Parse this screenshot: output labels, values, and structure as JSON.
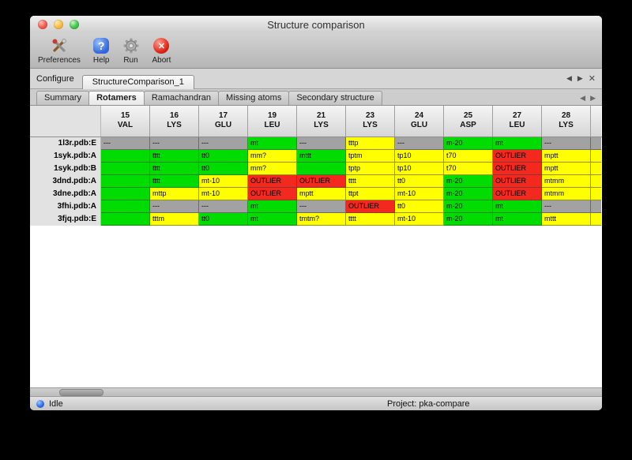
{
  "window": {
    "title": "Structure comparison"
  },
  "icons": {
    "prev": "◀",
    "next": "▶",
    "close": "✕",
    "abort_x": "✕",
    "help_mark": "?"
  },
  "toolbar": {
    "preferences": "Preferences",
    "help": "Help",
    "run": "Run",
    "abort": "Abort"
  },
  "configure": {
    "label": "Configure",
    "session_tab": "StructureComparison_1"
  },
  "tabs": {
    "items": [
      {
        "label": "Summary",
        "active": false
      },
      {
        "label": "Rotamers",
        "active": true
      },
      {
        "label": "Ramachandran",
        "active": false
      },
      {
        "label": "Missing atoms",
        "active": false
      },
      {
        "label": "Secondary structure",
        "active": false
      }
    ]
  },
  "table": {
    "colors": {
      "green": "#00dc00",
      "yellow": "#ffff00",
      "gray": "#a2a2a2",
      "red": "#f3281e"
    },
    "columns": [
      {
        "num": "15",
        "res": "VAL"
      },
      {
        "num": "16",
        "res": "LYS"
      },
      {
        "num": "17",
        "res": "GLU"
      },
      {
        "num": "19",
        "res": "LEU"
      },
      {
        "num": "21",
        "res": "LYS"
      },
      {
        "num": "23",
        "res": "LYS"
      },
      {
        "num": "24",
        "res": "GLU"
      },
      {
        "num": "25",
        "res": "ASP"
      },
      {
        "num": "27",
        "res": "LEU"
      },
      {
        "num": "28",
        "res": "LYS"
      },
      {
        "num": "",
        "res": ""
      }
    ],
    "rows": [
      {
        "label": "1l3r.pdb:E",
        "cells": [
          {
            "t": "---",
            "c": "gray"
          },
          {
            "t": "---",
            "c": "gray"
          },
          {
            "t": "---",
            "c": "gray"
          },
          {
            "t": "mt",
            "c": "green"
          },
          {
            "t": "---",
            "c": "gray"
          },
          {
            "t": "tttp",
            "c": "yellow"
          },
          {
            "t": "---",
            "c": "gray"
          },
          {
            "t": "m-20",
            "c": "green"
          },
          {
            "t": "mt",
            "c": "green"
          },
          {
            "t": "---",
            "c": "gray"
          },
          {
            "t": "",
            "c": "gray"
          }
        ]
      },
      {
        "label": "1syk.pdb:A",
        "cells": [
          {
            "t": "",
            "c": "green"
          },
          {
            "t": "tttt",
            "c": "green"
          },
          {
            "t": "tt0",
            "c": "green"
          },
          {
            "t": "mm?",
            "c": "yellow"
          },
          {
            "t": "mttt",
            "c": "green"
          },
          {
            "t": "tptm",
            "c": "yellow"
          },
          {
            "t": "tp10",
            "c": "yellow"
          },
          {
            "t": "t70",
            "c": "yellow"
          },
          {
            "t": "OUTLIER",
            "c": "red"
          },
          {
            "t": "mptt",
            "c": "yellow"
          },
          {
            "t": "",
            "c": "yellow"
          }
        ]
      },
      {
        "label": "1syk.pdb:B",
        "cells": [
          {
            "t": "",
            "c": "green"
          },
          {
            "t": "tttt",
            "c": "green"
          },
          {
            "t": "tt0",
            "c": "green"
          },
          {
            "t": "mm?",
            "c": "yellow"
          },
          {
            "t": "",
            "c": "green"
          },
          {
            "t": "tptp",
            "c": "yellow"
          },
          {
            "t": "tp10",
            "c": "yellow"
          },
          {
            "t": "t70",
            "c": "yellow"
          },
          {
            "t": "OUTLIER",
            "c": "red"
          },
          {
            "t": "mptt",
            "c": "yellow"
          },
          {
            "t": "",
            "c": "yellow"
          }
        ]
      },
      {
        "label": "3dnd.pdb:A",
        "cells": [
          {
            "t": "",
            "c": "green"
          },
          {
            "t": "tttt",
            "c": "green"
          },
          {
            "t": "mt-10",
            "c": "yellow"
          },
          {
            "t": "OUTLIER",
            "c": "red"
          },
          {
            "t": "OUTLIER",
            "c": "red"
          },
          {
            "t": "tttt",
            "c": "yellow"
          },
          {
            "t": "tt0",
            "c": "yellow"
          },
          {
            "t": "m-20",
            "c": "green"
          },
          {
            "t": "OUTLIER",
            "c": "red"
          },
          {
            "t": "mtmm",
            "c": "yellow"
          },
          {
            "t": "",
            "c": "yellow"
          }
        ]
      },
      {
        "label": "3dne.pdb:A",
        "cells": [
          {
            "t": "",
            "c": "green"
          },
          {
            "t": "mttp",
            "c": "yellow"
          },
          {
            "t": "mt-10",
            "c": "yellow"
          },
          {
            "t": "OUTLIER",
            "c": "red"
          },
          {
            "t": "mptt",
            "c": "yellow"
          },
          {
            "t": "ttpt",
            "c": "yellow"
          },
          {
            "t": "mt-10",
            "c": "yellow"
          },
          {
            "t": "m-20",
            "c": "green"
          },
          {
            "t": "OUTLIER",
            "c": "red"
          },
          {
            "t": "mtmm",
            "c": "yellow"
          },
          {
            "t": "",
            "c": "yellow"
          }
        ]
      },
      {
        "label": "3fhi.pdb:A",
        "cells": [
          {
            "t": "",
            "c": "green"
          },
          {
            "t": "---",
            "c": "gray"
          },
          {
            "t": "---",
            "c": "gray"
          },
          {
            "t": "mt",
            "c": "green"
          },
          {
            "t": "---",
            "c": "gray"
          },
          {
            "t": "OUTLIER",
            "c": "red"
          },
          {
            "t": "tt0",
            "c": "yellow"
          },
          {
            "t": "m-20",
            "c": "green"
          },
          {
            "t": "mt",
            "c": "green"
          },
          {
            "t": "---",
            "c": "gray"
          },
          {
            "t": "",
            "c": "gray"
          }
        ]
      },
      {
        "label": "3fjq.pdb:E",
        "cells": [
          {
            "t": "",
            "c": "green"
          },
          {
            "t": "tttm",
            "c": "yellow"
          },
          {
            "t": "tt0",
            "c": "green"
          },
          {
            "t": "mt",
            "c": "green"
          },
          {
            "t": "tmtm?",
            "c": "yellow"
          },
          {
            "t": "tttt",
            "c": "yellow"
          },
          {
            "t": "mt-10",
            "c": "yellow"
          },
          {
            "t": "m-20",
            "c": "green"
          },
          {
            "t": "mt",
            "c": "green"
          },
          {
            "t": "mttt",
            "c": "yellow"
          },
          {
            "t": "",
            "c": "yellow"
          }
        ]
      }
    ]
  },
  "statusbar": {
    "status": "Idle",
    "project": "Project: pka-compare"
  }
}
